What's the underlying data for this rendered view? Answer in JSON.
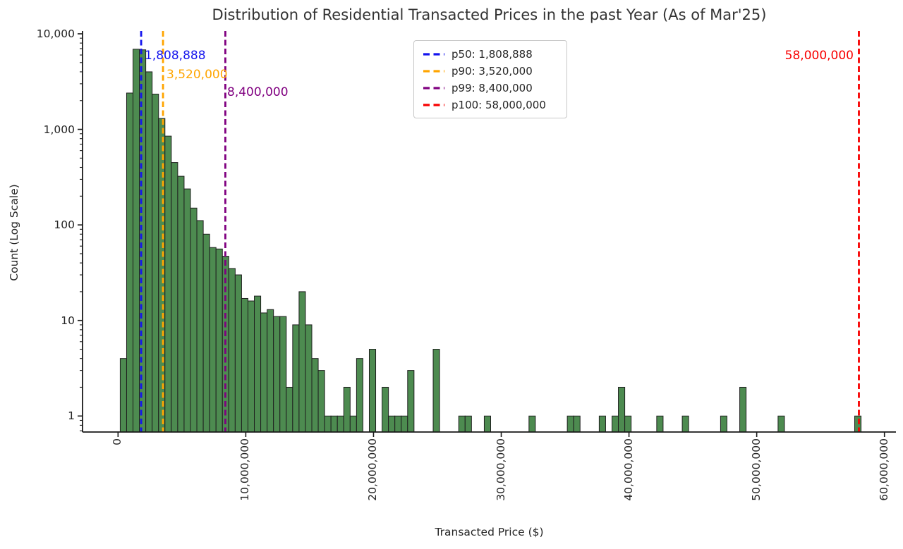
{
  "title": "Distribution of Residential Transacted Prices in the past Year (As of Mar'25)",
  "x_axis": {
    "label": "Transacted Price ($)",
    "tick_values": [
      0,
      10000000,
      20000000,
      30000000,
      40000000,
      50000000,
      60000000
    ],
    "tick_labels": [
      "0",
      "10,000,000",
      "20,000,000",
      "30,000,000",
      "40,000,000",
      "50,000,000",
      "60,000,000"
    ]
  },
  "y_axis": {
    "label": "Count (Log Scale)",
    "tick_values": [
      10000,
      1000,
      100,
      10,
      1
    ],
    "tick_labels": [
      "10,000",
      "1,000",
      "100",
      "10",
      "1"
    ]
  },
  "legend": {
    "entries": [
      {
        "label": "p50: 1,808,888",
        "color": "#1414ee"
      },
      {
        "label": "p90: 3,520,000",
        "color": "#ffa500"
      },
      {
        "label": "p99: 8,400,000",
        "color": "#800080"
      },
      {
        "label": "p100: 58,000,000",
        "color": "#f80000"
      }
    ]
  },
  "percentiles": [
    {
      "name": "p50",
      "value": 1808888,
      "annotation": "1,808,888",
      "color": "#1414ee"
    },
    {
      "name": "p90",
      "value": 3520000,
      "annotation": "3,520,000",
      "color": "#ffa500"
    },
    {
      "name": "p99",
      "value": 8400000,
      "annotation": "8,400,000",
      "color": "#800080"
    },
    {
      "name": "p100",
      "value": 58000000,
      "annotation": "58,000,000",
      "color": "#f80000"
    }
  ],
  "chart_data": {
    "type": "bar",
    "subtype": "histogram",
    "title": "Distribution of Residential Transacted Prices in the past Year (As of Mar'25)",
    "xlabel": "Transacted Price ($)",
    "ylabel": "Count (Log Scale)",
    "x_scale": "linear",
    "y_scale": "log",
    "xlim": [
      -2780000,
      60900000
    ],
    "ylim": [
      0.68,
      10700
    ],
    "grid": false,
    "legend_position": "upper center",
    "bar_color": "#4d8b50",
    "bar_edge_color": "#1f1f1f",
    "bin_start": 170000,
    "bin_width": 500000,
    "counts": [
      4,
      2400,
      6900,
      6800,
      4000,
      2340,
      1300,
      850,
      450,
      323,
      238,
      150,
      111,
      80,
      58,
      56,
      47,
      35,
      30,
      17,
      16,
      18,
      12,
      13,
      11,
      11,
      2,
      9,
      20,
      9,
      4,
      3,
      1,
      1,
      1,
      2,
      1,
      4,
      0,
      5,
      0,
      2,
      1,
      1,
      1,
      3,
      0,
      0,
      0,
      5,
      0,
      0,
      0,
      1,
      1,
      0,
      0,
      1,
      0,
      0,
      0,
      0,
      0,
      0,
      1,
      0,
      0,
      0,
      0,
      0,
      1,
      1,
      0,
      0,
      0,
      1,
      0,
      1,
      2,
      1,
      0,
      0,
      0,
      0,
      1,
      0,
      0,
      0,
      1,
      0,
      0,
      0,
      0,
      0,
      1,
      0,
      0,
      2,
      0,
      0,
      0,
      0,
      0,
      1,
      0,
      0,
      0,
      0,
      0,
      0,
      0,
      0,
      0,
      0,
      0,
      1
    ],
    "vlines": [
      {
        "name": "p50",
        "x": 1808888,
        "label": "p50: 1,808,888"
      },
      {
        "name": "p90",
        "x": 3520000,
        "label": "p90: 3,520,000"
      },
      {
        "name": "p99",
        "x": 8400000,
        "label": "p99: 8,400,000"
      },
      {
        "name": "p100",
        "x": 58000000,
        "label": "p100: 58,000,000"
      }
    ]
  }
}
